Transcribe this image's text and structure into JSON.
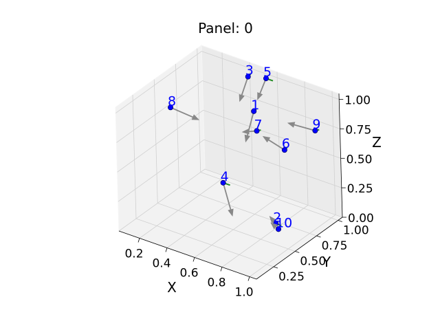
{
  "chart_data": {
    "type": "scatter",
    "projection": "3d",
    "title": "Panel: 0",
    "xlabel": "X",
    "ylabel": "Y",
    "zlabel": "Z",
    "xlim": [
      0.05,
      1.05
    ],
    "ylim": [
      0.05,
      1.05
    ],
    "zlim": [
      0.0,
      1.05
    ],
    "xticks": [
      "0.2",
      "0.4",
      "0.6",
      "0.8",
      "1.0"
    ],
    "yticks": [
      "0.25",
      "0.50",
      "0.75",
      "1.00"
    ],
    "zticks": [
      "0.00",
      "0.25",
      "0.50",
      "0.75",
      "1.00"
    ],
    "grid": true,
    "point_color": "#0000ff",
    "arrow_color": "#888888",
    "green_arrow_color": "#228b22",
    "points": [
      {
        "label": "1",
        "x": 0.55,
        "y": 0.85,
        "z": 0.8,
        "arrow": [
          0.0,
          -0.1,
          -0.2
        ],
        "green": [
          0.02,
          0.0,
          0.03
        ]
      },
      {
        "label": "2",
        "x": 0.85,
        "y": 0.6,
        "z": 0.1,
        "arrow": [
          -0.04,
          0.0,
          0.04
        ],
        "green": [
          0.04,
          0.0,
          0.0
        ]
      },
      {
        "label": "3",
        "x": 0.45,
        "y": 0.95,
        "z": 1.0,
        "arrow": [
          0.0,
          -0.1,
          -0.15
        ],
        "green": [
          0.02,
          0.0,
          0.03
        ]
      },
      {
        "label": "4",
        "x": 0.6,
        "y": 0.4,
        "z": 0.45,
        "arrow": [
          0.06,
          0.0,
          -0.25
        ],
        "green": [
          0.05,
          0.0,
          0.0
        ]
      },
      {
        "label": "5",
        "x": 0.55,
        "y": 1.0,
        "z": 1.0,
        "arrow": [
          0.0,
          -0.1,
          -0.12
        ],
        "green": [
          0.05,
          0.0,
          0.0
        ]
      },
      {
        "label": "6",
        "x": 0.8,
        "y": 0.8,
        "z": 0.6,
        "arrow": [
          -0.15,
          0.0,
          0.05
        ],
        "green": [
          0.02,
          0.0,
          0.03
        ]
      },
      {
        "label": "7",
        "x": 0.6,
        "y": 0.8,
        "z": 0.68,
        "arrow": [
          -0.1,
          0.0,
          -0.05
        ],
        "green": [
          0.03,
          0.0,
          0.02
        ]
      },
      {
        "label": "8",
        "x": 0.1,
        "y": 0.6,
        "z": 0.78,
        "arrow": [
          0.2,
          0.0,
          -0.02
        ],
        "green": [
          0.0,
          0.0,
          0.0
        ]
      },
      {
        "label": "9",
        "x": 0.9,
        "y": 1.0,
        "z": 0.7,
        "arrow": [
          -0.18,
          -0.02,
          0.0
        ],
        "green": [
          0.03,
          0.0,
          0.02
        ]
      },
      {
        "label": "10",
        "x": 0.9,
        "y": 0.55,
        "z": 0.1,
        "arrow": [
          -0.05,
          0.0,
          0.03
        ],
        "green": [
          0.0,
          0.0,
          0.0
        ]
      }
    ]
  }
}
